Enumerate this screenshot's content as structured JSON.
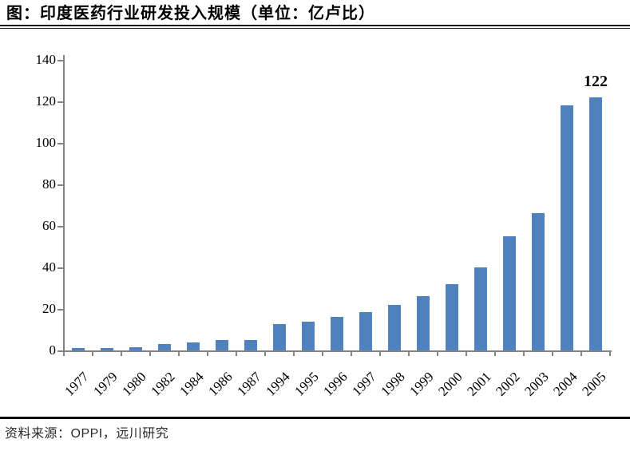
{
  "title": "图：印度医药行业研发投入规模（单位：亿卢比）",
  "source": "资料来源：OPPI，远川研究",
  "chart_data": {
    "type": "bar",
    "title": "图：印度医药行业研发投入规模（单位：亿卢比）",
    "categories": [
      "1977",
      "1979",
      "1980",
      "1982",
      "1984",
      "1986",
      "1987",
      "1994",
      "1995",
      "1996",
      "1997",
      "1998",
      "1999",
      "2000",
      "2001",
      "2002",
      "2003",
      "2004",
      "2005"
    ],
    "values": [
      1,
      1,
      1.5,
      3,
      4,
      5,
      5,
      12.5,
      14,
      16,
      18.5,
      22,
      26,
      32,
      40,
      55,
      66,
      118,
      122
    ],
    "xlabel": "",
    "ylabel": "",
    "ylim": [
      0,
      140
    ],
    "ytick_step": 20,
    "yticks": [
      0,
      20,
      40,
      60,
      80,
      100,
      120,
      140
    ],
    "grid": false,
    "legend_position": "none",
    "bar_color": "#4F81BD",
    "axis_color": "#848484",
    "data_labels": [
      {
        "category": "2005",
        "text": "122"
      }
    ]
  }
}
